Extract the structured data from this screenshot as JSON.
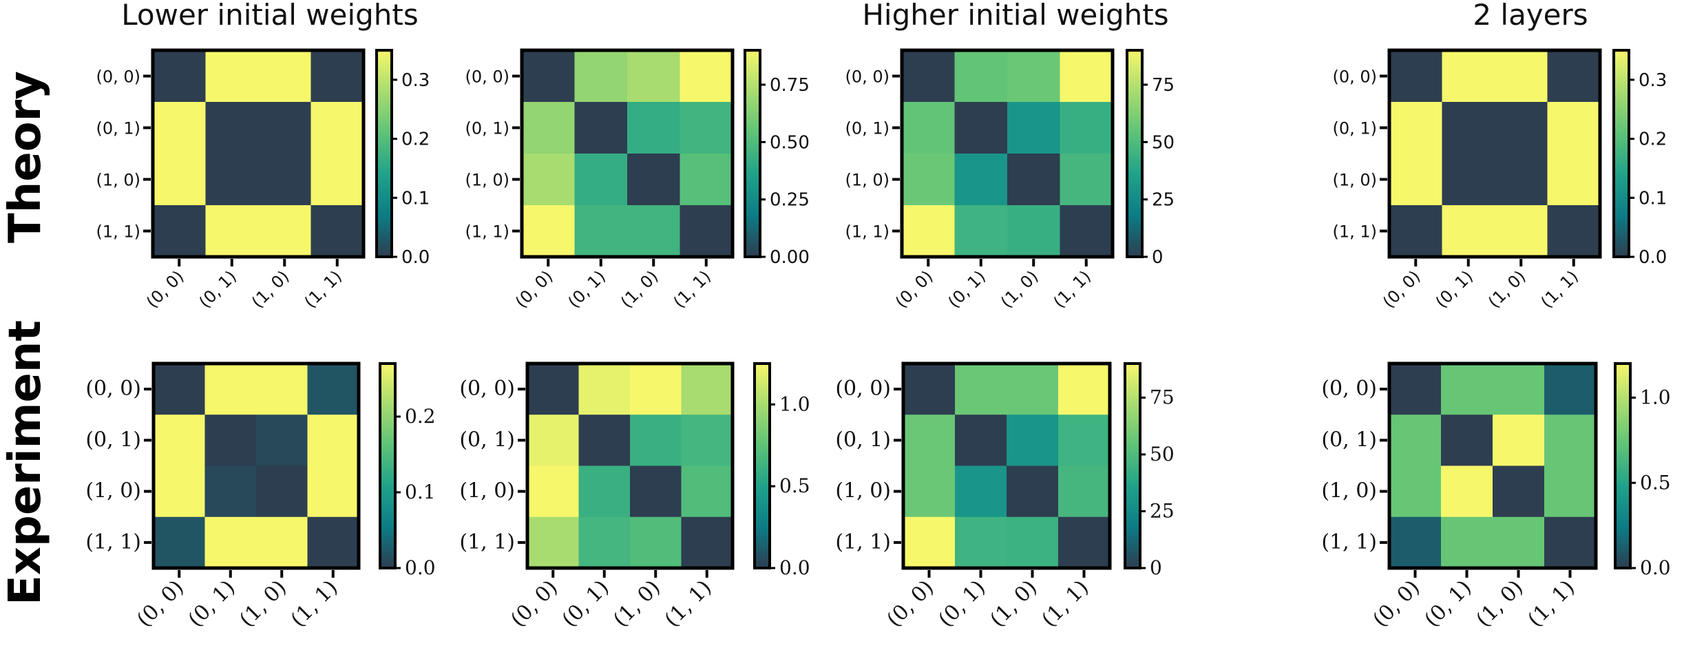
{
  "figure": {
    "column_titles": [
      "Lower initial weights",
      "",
      "Higher initial weights",
      "2 layers"
    ],
    "row_labels": [
      "Theory",
      "Experiment"
    ]
  },
  "colormap": [
    "#2d3e50",
    "#0c7c86",
    "#20a28a",
    "#5ec377",
    "#a8dc70",
    "#f7f76b"
  ],
  "chart_data": [
    {
      "type": "heatmap",
      "row": "Theory",
      "column_title": "Lower initial weights",
      "row_labels": [
        "(0, 0)",
        "(0, 1)",
        "(1, 0)",
        "(1, 1)"
      ],
      "col_labels": [
        "(0, 0)",
        "(0, 1)",
        "(1, 0)",
        "(1, 1)"
      ],
      "values": [
        [
          0.0,
          0.35,
          0.35,
          0.0
        ],
        [
          0.35,
          0.0,
          0.0,
          0.35
        ],
        [
          0.35,
          0.0,
          0.0,
          0.35
        ],
        [
          0.0,
          0.35,
          0.35,
          0.0
        ]
      ],
      "vmin": 0.0,
      "vmax": 0.35,
      "colorbar_ticks": [
        0.0,
        0.1,
        0.2,
        0.3
      ],
      "colorbar_tick_labels": [
        "0.0",
        "0.1",
        "0.2",
        "0.3"
      ]
    },
    {
      "type": "heatmap",
      "row": "Theory",
      "column_title": "",
      "row_labels": [
        "(0, 0)",
        "(0, 1)",
        "(1, 0)",
        "(1, 1)"
      ],
      "col_labels": [
        "(0, 0)",
        "(0, 1)",
        "(1, 0)",
        "(1, 1)"
      ],
      "values": [
        [
          0.0,
          0.67,
          0.72,
          0.9
        ],
        [
          0.67,
          0.0,
          0.42,
          0.46
        ],
        [
          0.72,
          0.42,
          0.0,
          0.52
        ],
        [
          0.9,
          0.46,
          0.46,
          0.0
        ]
      ],
      "vmin": 0.0,
      "vmax": 0.9,
      "colorbar_ticks": [
        0.0,
        0.25,
        0.5,
        0.75
      ],
      "colorbar_tick_labels": [
        "0.00",
        "0.25",
        "0.50",
        "0.75"
      ]
    },
    {
      "type": "heatmap",
      "row": "Theory",
      "column_title": "Higher initial weights",
      "row_labels": [
        "(0, 0)",
        "(0, 1)",
        "(1, 0)",
        "(1, 1)"
      ],
      "col_labels": [
        "(0, 0)",
        "(0, 1)",
        "(1, 0)",
        "(1, 1)"
      ],
      "values": [
        [
          0.0,
          55,
          57,
          90
        ],
        [
          55,
          0.0,
          30,
          43
        ],
        [
          57,
          30,
          0.0,
          47
        ],
        [
          90,
          45,
          43,
          0.0
        ]
      ],
      "vmin": 0,
      "vmax": 90,
      "colorbar_ticks": [
        0,
        25,
        50,
        75
      ],
      "colorbar_tick_labels": [
        "0",
        "25",
        "50",
        "75"
      ]
    },
    {
      "type": "heatmap",
      "row": "Theory",
      "column_title": "2 layers",
      "row_labels": [
        "(0, 0)",
        "(0, 1)",
        "(1, 0)",
        "(1, 1)"
      ],
      "col_labels": [
        "(0, 0)",
        "(0, 1)",
        "(1, 0)",
        "(1, 1)"
      ],
      "values": [
        [
          0.0,
          0.35,
          0.35,
          0.0
        ],
        [
          0.35,
          0.0,
          0.0,
          0.35
        ],
        [
          0.35,
          0.0,
          0.0,
          0.35
        ],
        [
          0.0,
          0.35,
          0.35,
          0.0
        ]
      ],
      "vmin": 0.0,
      "vmax": 0.35,
      "colorbar_ticks": [
        0.0,
        0.1,
        0.2,
        0.3
      ],
      "colorbar_tick_labels": [
        "0.0",
        "0.1",
        "0.2",
        "0.3"
      ]
    },
    {
      "type": "heatmap",
      "row": "Experiment",
      "column_title": "Lower initial weights",
      "row_labels": [
        "(0, 0)",
        "(0, 1)",
        "(1, 0)",
        "(1, 1)"
      ],
      "col_labels": [
        "(0, 0)",
        "(0, 1)",
        "(1, 0)",
        "(1, 1)"
      ],
      "values": [
        [
          0.0,
          0.27,
          0.27,
          0.02
        ],
        [
          0.27,
          0.0,
          0.01,
          0.27
        ],
        [
          0.27,
          0.01,
          0.0,
          0.27
        ],
        [
          0.02,
          0.27,
          0.27,
          0.0
        ]
      ],
      "vmin": 0.0,
      "vmax": 0.27,
      "colorbar_ticks": [
        0.0,
        0.1,
        0.2
      ],
      "colorbar_tick_labels": [
        "0.0",
        "0.1",
        "0.2"
      ]
    },
    {
      "type": "heatmap",
      "row": "Experiment",
      "column_title": "",
      "row_labels": [
        "(0, 0)",
        "(0, 1)",
        "(1, 0)",
        "(1, 1)"
      ],
      "col_labels": [
        "(0, 0)",
        "(0, 1)",
        "(1, 0)",
        "(1, 1)"
      ],
      "values": [
        [
          0.0,
          1.2,
          1.25,
          1.0
        ],
        [
          1.2,
          0.0,
          0.6,
          0.65
        ],
        [
          1.25,
          0.6,
          0.0,
          0.7
        ],
        [
          1.0,
          0.65,
          0.7,
          0.0
        ]
      ],
      "vmin": 0.0,
      "vmax": 1.25,
      "colorbar_ticks": [
        0.0,
        0.5,
        1.0
      ],
      "colorbar_tick_labels": [
        "0.0",
        "0.5",
        "1.0"
      ]
    },
    {
      "type": "heatmap",
      "row": "Experiment",
      "column_title": "Higher initial weights",
      "row_labels": [
        "(0, 0)",
        "(0, 1)",
        "(1, 0)",
        "(1, 1)"
      ],
      "col_labels": [
        "(0, 0)",
        "(0, 1)",
        "(1, 0)",
        "(1, 1)"
      ],
      "values": [
        [
          0.0,
          57,
          57,
          90
        ],
        [
          57,
          0.0,
          30,
          45
        ],
        [
          57,
          30,
          0.0,
          47
        ],
        [
          90,
          45,
          44,
          0.0
        ]
      ],
      "vmin": 0,
      "vmax": 90,
      "colorbar_ticks": [
        0,
        25,
        50,
        75
      ],
      "colorbar_tick_labels": [
        "0",
        "25",
        "50",
        "75"
      ]
    },
    {
      "type": "heatmap",
      "row": "Experiment",
      "column_title": "2 layers",
      "row_labels": [
        "(0, 0)",
        "(0, 1)",
        "(1, 0)",
        "(1, 1)"
      ],
      "col_labels": [
        "(0, 0)",
        "(0, 1)",
        "(1, 0)",
        "(1, 1)"
      ],
      "values": [
        [
          0.0,
          0.75,
          0.75,
          0.12
        ],
        [
          0.75,
          0.0,
          1.2,
          0.75
        ],
        [
          0.75,
          1.2,
          0.0,
          0.75
        ],
        [
          0.12,
          0.75,
          0.75,
          0.0
        ]
      ],
      "vmin": 0.0,
      "vmax": 1.2,
      "colorbar_ticks": [
        0.0,
        0.5,
        1.0
      ],
      "colorbar_tick_labels": [
        "0.0",
        "0.5",
        "1.0"
      ]
    }
  ]
}
